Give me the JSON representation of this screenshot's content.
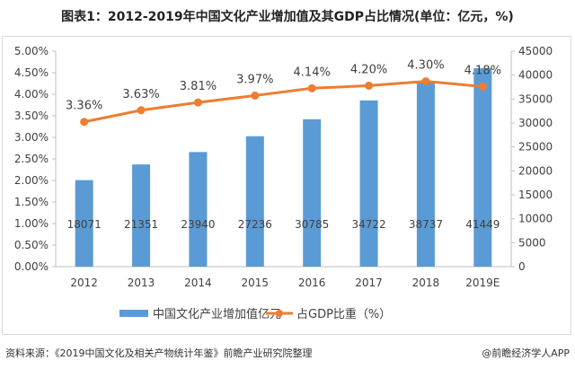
{
  "title": "图表1：2012-2019年中国文化产业增加值及其GDP占比情况(单位：亿元，%)",
  "source": "资料来源：《2019中国文化及相关产物统计年鉴》前瞻产业研究院整理",
  "credit": "@前瞻经济学人APP",
  "chart_data": {
    "type": "bar+line",
    "categories": [
      "2012",
      "2013",
      "2014",
      "2015",
      "2016",
      "2017",
      "2018",
      "2019E"
    ],
    "series": [
      {
        "name": "中国文化产业增加值亿元",
        "type": "bar",
        "axis": "right",
        "color": "#5b9bd5",
        "values": [
          18071,
          21351,
          23940,
          27236,
          30785,
          34722,
          38737,
          41449
        ],
        "labels": [
          "18071",
          "21351",
          "23940",
          "27236",
          "30785",
          "34722",
          "38737",
          "41449"
        ]
      },
      {
        "name": "占GDP比重（%）",
        "type": "line",
        "axis": "left",
        "color": "#ed7d31",
        "values": [
          3.36,
          3.63,
          3.81,
          3.97,
          4.14,
          4.2,
          4.3,
          4.18
        ],
        "labels": [
          "3.36%",
          "3.63%",
          "3.81%",
          "3.97%",
          "4.14%",
          "4.20%",
          "4.30%",
          "4.18%"
        ]
      }
    ],
    "left_axis": {
      "ylim": [
        0,
        5
      ],
      "ticks": [
        "0.00%",
        "0.50%",
        "1.00%",
        "1.50%",
        "2.00%",
        "2.50%",
        "3.00%",
        "3.50%",
        "4.00%",
        "4.50%",
        "5.00%"
      ]
    },
    "right_axis": {
      "ylim": [
        0,
        45000
      ],
      "ticks": [
        "0",
        "5000",
        "10000",
        "15000",
        "20000",
        "25000",
        "30000",
        "35000",
        "40000",
        "45000"
      ]
    },
    "grid": false,
    "legend_position": "bottom"
  }
}
